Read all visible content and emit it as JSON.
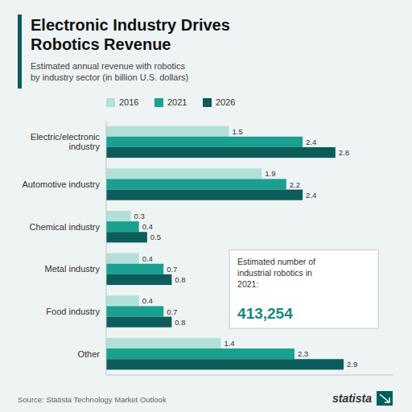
{
  "chart_data": {
    "type": "bar",
    "orientation": "horizontal",
    "title": "Electronic Industry Drives\nRobotics Revenue",
    "subtitle": "Estimated annual revenue with robotics\nby industry sector (in billion U.S. dollars)",
    "categories": [
      "Electric/electronic\nindustry",
      "Automotive industry",
      "Chemical industry",
      "Metal industry",
      "Food industry",
      "Other"
    ],
    "series": [
      {
        "name": "2016",
        "color": "#b2e0d8",
        "values": [
          1.5,
          1.9,
          0.3,
          0.4,
          0.4,
          1.4
        ]
      },
      {
        "name": "2021",
        "color": "#19a090",
        "values": [
          2.4,
          2.2,
          0.4,
          0.7,
          0.7,
          2.3
        ]
      },
      {
        "name": "2026",
        "color": "#0d5c5c",
        "values": [
          2.8,
          2.4,
          0.5,
          0.8,
          0.8,
          2.9
        ]
      }
    ],
    "xlim": [
      0,
      3.5
    ],
    "data_labels": true,
    "tick_labels": "y",
    "grid": false,
    "legend": "top",
    "annotations": [
      "Estimated number of\nindustrial robotics in\n2021:",
      "413,254"
    ],
    "source": "Source: Statista Technology Market Outlook",
    "credit": "statista"
  }
}
